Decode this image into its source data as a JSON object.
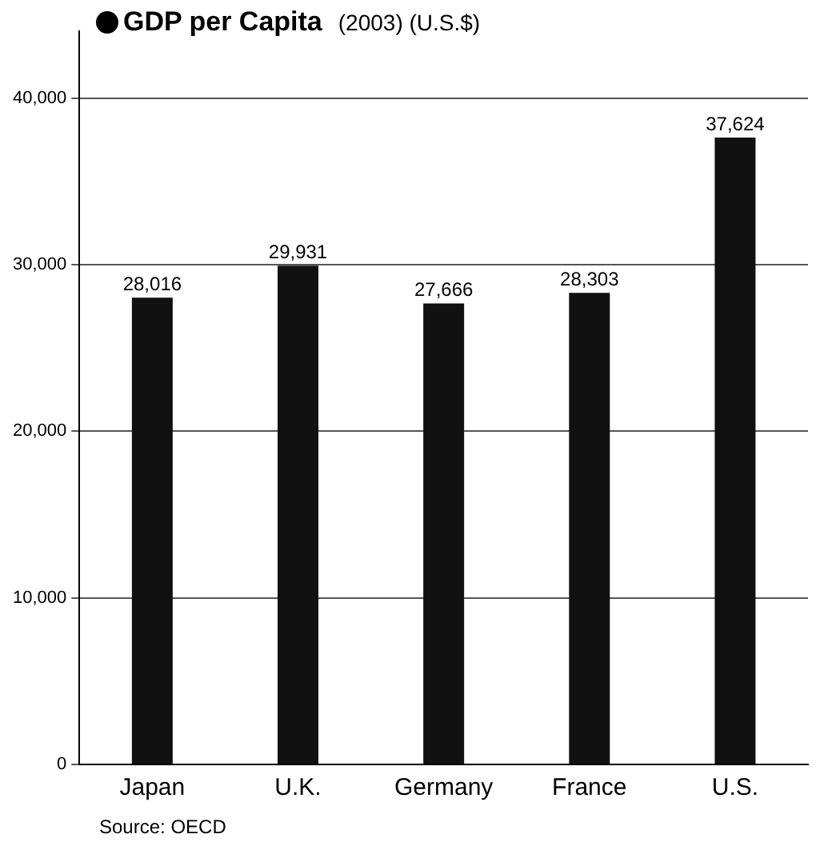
{
  "chart_data": {
    "type": "bar",
    "title": "GDP per Capita",
    "subtitle": "(2003) (U.S.$)",
    "categories": [
      "Japan",
      "U.K.",
      "Germany",
      "France",
      "U.S."
    ],
    "values": [
      28016,
      29931,
      27666,
      28303,
      37624
    ],
    "value_labels": [
      "28,016",
      "29,931",
      "27,666",
      "28,303",
      "37,624"
    ],
    "color": "#111111",
    "ylim": [
      0,
      44000
    ],
    "yticks": [
      {
        "value": 0,
        "label": "0"
      },
      {
        "value": 10000,
        "label": "10,000"
      },
      {
        "value": 20000,
        "label": "20,000"
      },
      {
        "value": 30000,
        "label": "30,000"
      },
      {
        "value": 40000,
        "label": "40,000"
      }
    ],
    "grid": "y",
    "legend": false,
    "annotations": [
      "Source: OECD"
    ]
  }
}
